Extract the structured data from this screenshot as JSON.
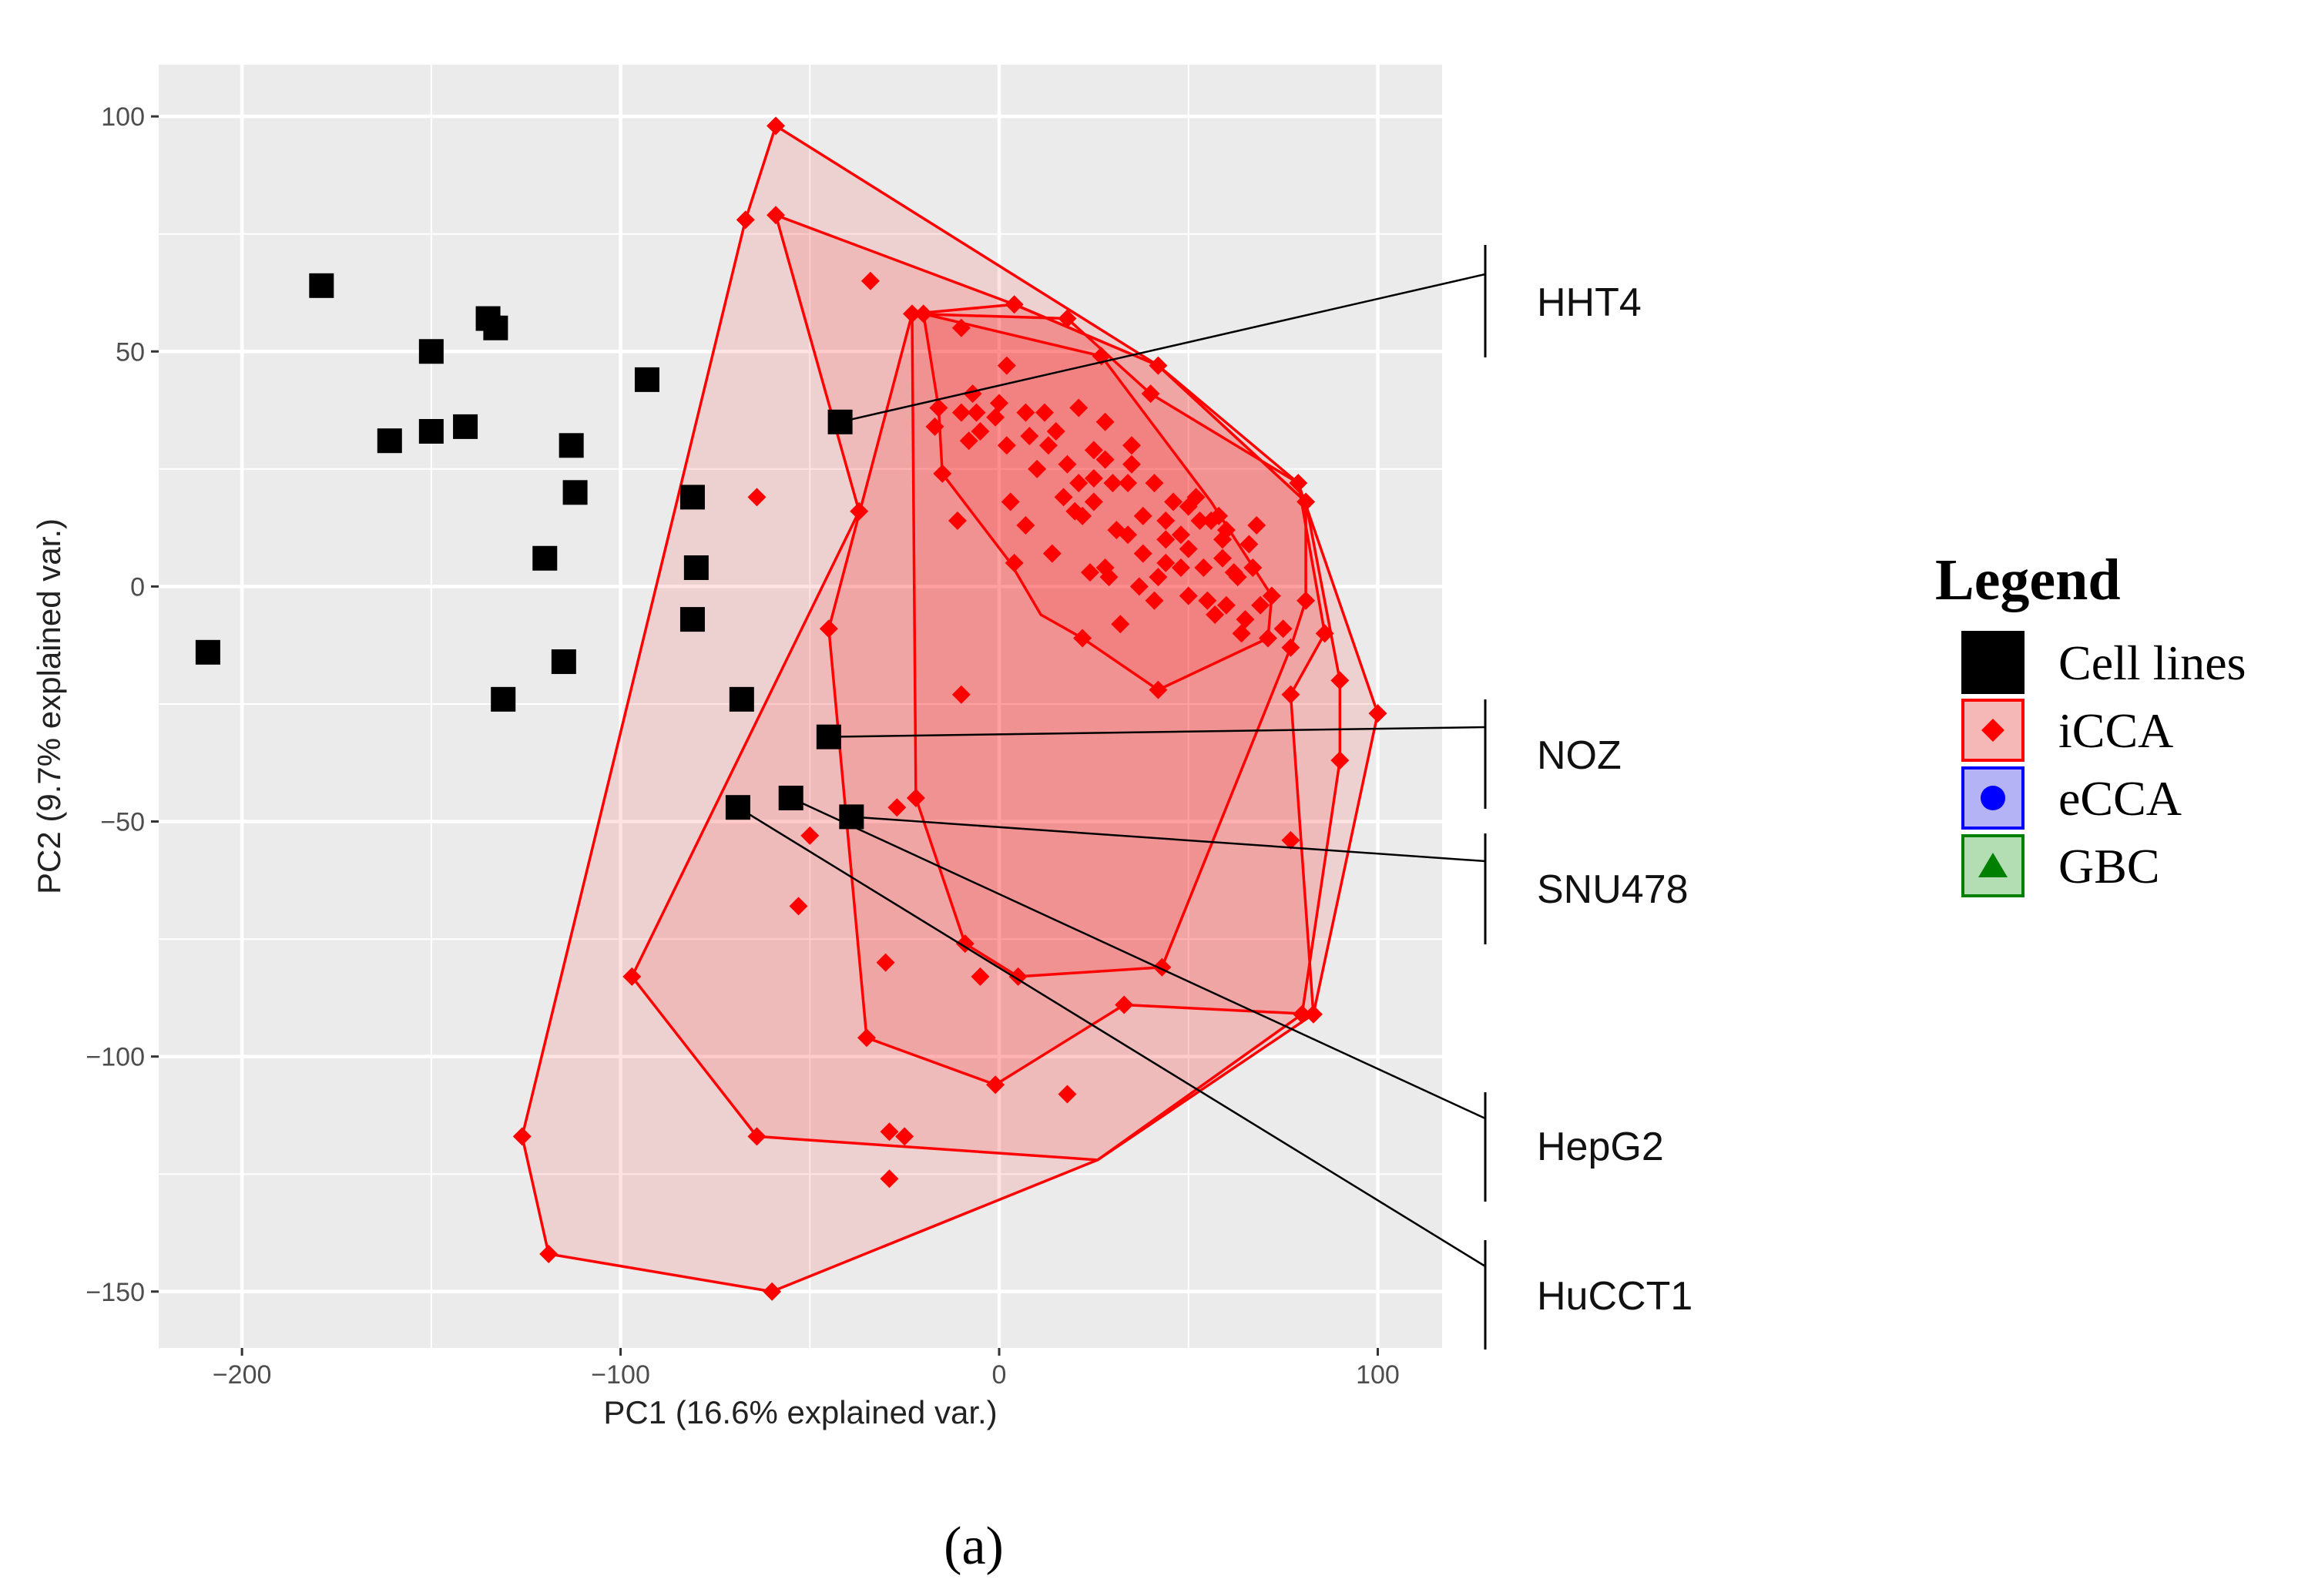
{
  "chart_data": {
    "type": "scatter",
    "xlabel": "PC1 (16.6% explained var.)",
    "ylabel": "PC2 (9.7% explained var.)",
    "xlim": [
      -222,
      117
    ],
    "ylim": [
      -162,
      111
    ],
    "xticks": [
      -200,
      -100,
      0,
      100
    ],
    "yticks": [
      100,
      50,
      0,
      -50,
      -100,
      -150
    ],
    "grid": true,
    "legend_position": "right",
    "panel_label": "(a)",
    "colors": {
      "panel_bg": "#ebebeb",
      "grid": "#ffffff",
      "cell_lines": "#000000",
      "iCCA": "#ff0000",
      "eCCA": "#0000ff",
      "GBC": "#008000"
    },
    "legend": {
      "title": "Legend",
      "items": [
        {
          "label": "Cell lines",
          "shape": "square",
          "color": "#000000",
          "box_fill": "#000000",
          "box_stroke": "#000000"
        },
        {
          "label": "iCCA",
          "shape": "diamond",
          "color": "#ff0000",
          "box_fill": "#f6b7b7",
          "box_stroke": "#ff0000"
        },
        {
          "label": "eCCA",
          "shape": "circle",
          "color": "#0000ff",
          "box_fill": "#b3b3f5",
          "box_stroke": "#0000ff"
        },
        {
          "label": "GBC",
          "shape": "triangle",
          "color": "#008000",
          "box_fill": "#b3ddb3",
          "box_stroke": "#008000"
        }
      ]
    },
    "series": [
      {
        "name": "Cell lines",
        "shape": "square",
        "color": "#000000",
        "points": [
          [
            -179,
            64
          ],
          [
            -161,
            31
          ],
          [
            -150,
            50
          ],
          [
            -150,
            33
          ],
          [
            -141,
            34
          ],
          [
            -135,
            57
          ],
          [
            -133,
            55
          ],
          [
            -113,
            30
          ],
          [
            -112,
            20
          ],
          [
            -120,
            6
          ],
          [
            -115,
            -16
          ],
          [
            -131,
            -24
          ],
          [
            -209,
            -14
          ],
          [
            -93,
            44
          ],
          [
            -81,
            19
          ],
          [
            -80,
            4
          ],
          [
            -81,
            -7
          ],
          [
            -68,
            -24
          ],
          [
            -45,
            -32
          ],
          [
            -42,
            35
          ],
          [
            -69,
            -47
          ],
          [
            -55,
            -45
          ],
          [
            -39,
            -49
          ]
        ]
      },
      {
        "name": "iCCA",
        "shape": "diamond",
        "color": "#ff0000",
        "points": [
          [
            -59,
            98
          ],
          [
            -67,
            78
          ],
          [
            -59,
            79
          ],
          [
            -34,
            65
          ],
          [
            -23,
            58
          ],
          [
            -20,
            58
          ],
          [
            -10,
            55
          ],
          [
            4,
            60
          ],
          [
            18,
            57
          ],
          [
            27,
            49
          ],
          [
            42,
            47
          ],
          [
            40,
            41
          ],
          [
            -7,
            41
          ],
          [
            2,
            47
          ],
          [
            0,
            39
          ],
          [
            -1,
            36
          ],
          [
            -6,
            37
          ],
          [
            -10,
            37
          ],
          [
            7,
            37
          ],
          [
            12,
            37
          ],
          [
            -16,
            38
          ],
          [
            -17,
            34
          ],
          [
            -5,
            33
          ],
          [
            8,
            32
          ],
          [
            13,
            30
          ],
          [
            15,
            33
          ],
          [
            21,
            38
          ],
          [
            28,
            35
          ],
          [
            25,
            29
          ],
          [
            28,
            27
          ],
          [
            35,
            30
          ],
          [
            18,
            26
          ],
          [
            21,
            22
          ],
          [
            25,
            23
          ],
          [
            30,
            22
          ],
          [
            34,
            22
          ],
          [
            10,
            25
          ],
          [
            20,
            16
          ],
          [
            17,
            19
          ],
          [
            22,
            15
          ],
          [
            31,
            12
          ],
          [
            34,
            11
          ],
          [
            25,
            18
          ],
          [
            38,
            15
          ],
          [
            46,
            18
          ],
          [
            44,
            14
          ],
          [
            50,
            17
          ],
          [
            53,
            14
          ],
          [
            56,
            14
          ],
          [
            59,
            10
          ],
          [
            44,
            10
          ],
          [
            48,
            11
          ],
          [
            38,
            7
          ],
          [
            44,
            5
          ],
          [
            48,
            4
          ],
          [
            54,
            4
          ],
          [
            62,
            3
          ],
          [
            67,
            4
          ],
          [
            59,
            6
          ],
          [
            66,
            9
          ],
          [
            68,
            13
          ],
          [
            58,
            15
          ],
          [
            52,
            19
          ],
          [
            41,
            22
          ],
          [
            35,
            26
          ],
          [
            3,
            18
          ],
          [
            -8,
            31
          ],
          [
            -15,
            24
          ],
          [
            4,
            5
          ],
          [
            14,
            7
          ],
          [
            24,
            3
          ],
          [
            29,
            2
          ],
          [
            37,
            0
          ],
          [
            42,
            2
          ],
          [
            41,
            -3
          ],
          [
            50,
            -2
          ],
          [
            55,
            -3
          ],
          [
            57,
            -6
          ],
          [
            60,
            -4
          ],
          [
            65,
            -7
          ],
          [
            64,
            -10
          ],
          [
            71,
            -11
          ],
          [
            75,
            -9
          ],
          [
            72,
            -2
          ],
          [
            69,
            -4
          ],
          [
            63,
            2
          ],
          [
            79,
            22
          ],
          [
            81,
            18
          ],
          [
            81,
            -3
          ],
          [
            86,
            -10
          ],
          [
            77,
            -13
          ],
          [
            90,
            -20
          ],
          [
            77,
            -23
          ],
          [
            100,
            -27
          ],
          [
            90,
            -37
          ],
          [
            77,
            -54
          ],
          [
            83,
            -91
          ],
          [
            80,
            -91
          ],
          [
            33,
            -89
          ],
          [
            43,
            -81
          ],
          [
            -5,
            -83
          ],
          [
            5,
            -83
          ],
          [
            -9,
            -76
          ],
          [
            -30,
            -80
          ],
          [
            -35,
            -96
          ],
          [
            -1,
            -106
          ],
          [
            18,
            -108
          ],
          [
            -29,
            -116
          ],
          [
            -25,
            -117
          ],
          [
            -29,
            -126
          ],
          [
            -64,
            -117
          ],
          [
            -60,
            -150
          ],
          [
            -119,
            -142
          ],
          [
            -126,
            -117
          ],
          [
            -97,
            -83
          ],
          [
            -53,
            -68
          ],
          [
            -50,
            -53
          ],
          [
            -45,
            -9
          ],
          [
            -37,
            16
          ],
          [
            -64,
            19
          ],
          [
            -10,
            -23
          ],
          [
            -22,
            -45
          ],
          [
            -27,
            -47
          ],
          [
            22,
            -11
          ],
          [
            32,
            -8
          ],
          [
            -11,
            14
          ],
          [
            2,
            30
          ],
          [
            7,
            13
          ],
          [
            28,
            4
          ],
          [
            60,
            12
          ],
          [
            50,
            8
          ],
          [
            42,
            -22
          ]
        ]
      }
    ],
    "hull_layers": [
      [
        [
          -59,
          98
        ],
        [
          42,
          47
        ],
        [
          79,
          22
        ],
        [
          100,
          -27
        ],
        [
          83,
          -91
        ],
        [
          26,
          -122
        ],
        [
          -60,
          -150
        ],
        [
          -119,
          -142
        ],
        [
          -126,
          -117
        ],
        [
          -67,
          78
        ]
      ],
      [
        [
          -59,
          79
        ],
        [
          4,
          60
        ],
        [
          42,
          47
        ],
        [
          81,
          18
        ],
        [
          90,
          -20
        ],
        [
          90,
          -37
        ],
        [
          80,
          -91
        ],
        [
          26,
          -122
        ],
        [
          -64,
          -117
        ],
        [
          -97,
          -83
        ],
        [
          -37,
          16
        ]
      ],
      [
        [
          -23,
          58
        ],
        [
          18,
          57
        ],
        [
          40,
          41
        ],
        [
          79,
          22
        ],
        [
          86,
          -10
        ],
        [
          77,
          -23
        ],
        [
          83,
          -91
        ],
        [
          33,
          -89
        ],
        [
          -1,
          -106
        ],
        [
          -35,
          -96
        ],
        [
          -45,
          -9
        ]
      ],
      [
        [
          -23,
          58
        ],
        [
          4,
          60
        ],
        [
          42,
          47
        ],
        [
          81,
          18
        ],
        [
          81,
          -3
        ],
        [
          77,
          -13
        ],
        [
          43,
          -81
        ],
        [
          5,
          -83
        ],
        [
          -9,
          -76
        ],
        [
          -22,
          -45
        ]
      ],
      [
        [
          -20,
          58
        ],
        [
          27,
          49
        ],
        [
          56,
          18
        ],
        [
          72,
          -2
        ],
        [
          71,
          -11
        ],
        [
          42,
          -22
        ],
        [
          22,
          -11
        ],
        [
          11,
          -6
        ],
        [
          3,
          5
        ],
        [
          -15,
          24
        ],
        [
          -16,
          38
        ]
      ]
    ],
    "callouts": [
      {
        "label": "HHT4",
        "from": [
          -42,
          35
        ]
      },
      {
        "label": "NOZ",
        "from": [
          -45,
          -32
        ]
      },
      {
        "label": "SNU478",
        "from": [
          -39,
          -49
        ]
      },
      {
        "label": "HepG2",
        "from": [
          -55,
          -45
        ]
      },
      {
        "label": "HuCCT1",
        "from": [
          -69,
          -47
        ]
      }
    ]
  }
}
